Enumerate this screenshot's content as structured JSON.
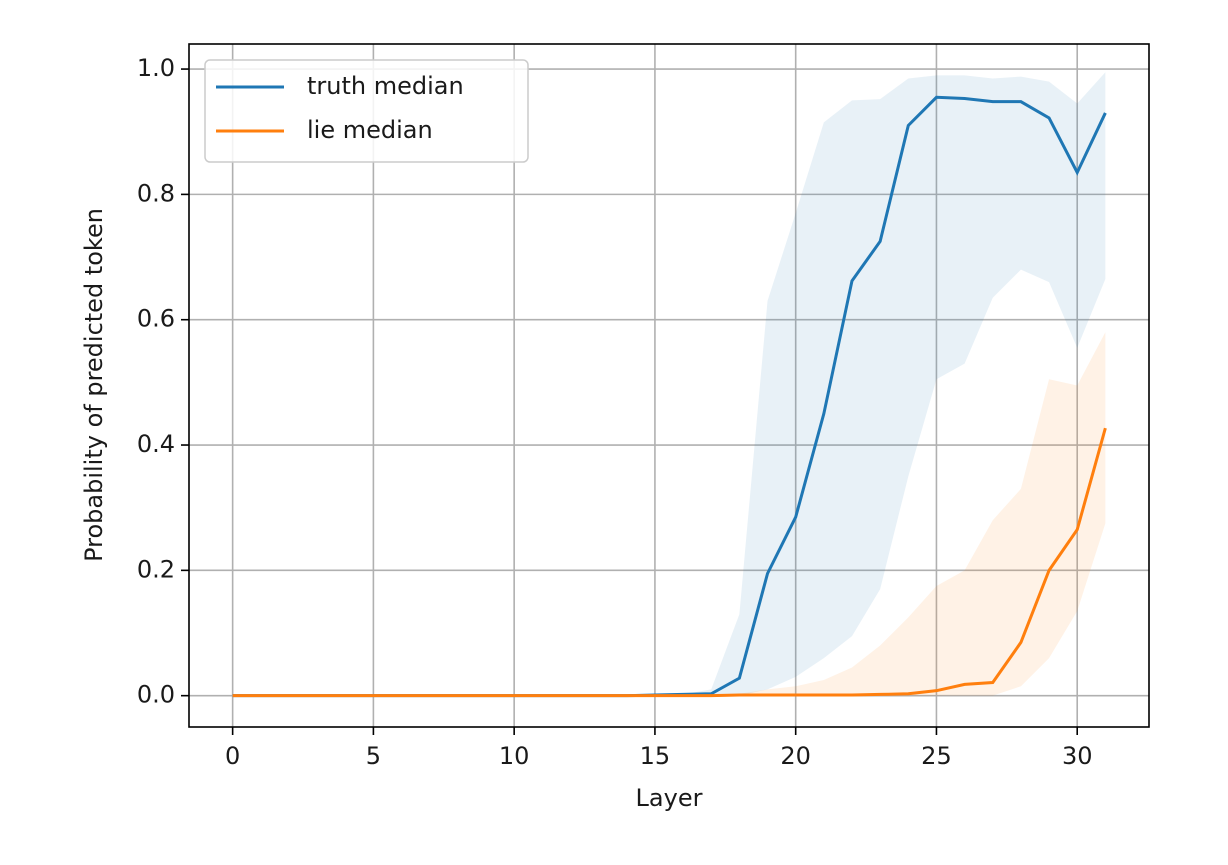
{
  "chart_data": {
    "type": "line",
    "xlabel": "Layer",
    "ylabel": "Probability of predicted token",
    "x": [
      0,
      1,
      2,
      3,
      4,
      5,
      6,
      7,
      8,
      9,
      10,
      11,
      12,
      13,
      14,
      15,
      16,
      17,
      18,
      19,
      20,
      21,
      22,
      23,
      24,
      25,
      26,
      27,
      28,
      29,
      30,
      31
    ],
    "series": [
      {
        "name": "truth median",
        "color": "#1f77b4",
        "band_color": "#1f77b4",
        "values": [
          0,
          0,
          0,
          0,
          0,
          0,
          0,
          0,
          0,
          0,
          0,
          0,
          0,
          0,
          0,
          0.001,
          0.002,
          0.003,
          0.028,
          0.195,
          0.285,
          0.45,
          0.662,
          0.725,
          0.91,
          0.955,
          0.953,
          0.948,
          0.948,
          0.922,
          0.835,
          0.93
        ],
        "upper": [
          0,
          0,
          0,
          0,
          0,
          0,
          0,
          0,
          0,
          0,
          0,
          0,
          0,
          0,
          0,
          0.001,
          0.002,
          0.01,
          0.13,
          0.63,
          0.77,
          0.915,
          0.95,
          0.952,
          0.985,
          0.99,
          0.99,
          0.985,
          0.988,
          0.98,
          0.945,
          0.995
        ],
        "lower": [
          0,
          0,
          0,
          0,
          0,
          0,
          0,
          0,
          0,
          0,
          0,
          0,
          0,
          0,
          0,
          0,
          0,
          0,
          0,
          0.01,
          0.03,
          0.06,
          0.095,
          0.17,
          0.35,
          0.505,
          0.53,
          0.635,
          0.68,
          0.66,
          0.555,
          0.665
        ]
      },
      {
        "name": "lie median",
        "color": "#ff7f0e",
        "band_color": "#ff7f0e",
        "values": [
          0,
          0,
          0,
          0,
          0,
          0,
          0,
          0,
          0,
          0,
          0,
          0,
          0,
          0,
          0,
          0,
          0,
          0,
          0.001,
          0.001,
          0.001,
          0.001,
          0.001,
          0.002,
          0.003,
          0.008,
          0.018,
          0.021,
          0.085,
          0.2,
          0.265,
          0.427
        ],
        "upper": [
          0,
          0,
          0,
          0,
          0,
          0,
          0,
          0,
          0,
          0,
          0,
          0,
          0,
          0,
          0,
          0,
          0,
          0,
          0.003,
          0.01,
          0.015,
          0.025,
          0.045,
          0.08,
          0.125,
          0.175,
          0.2,
          0.28,
          0.33,
          0.505,
          0.495,
          0.58
        ],
        "lower": [
          0,
          0,
          0,
          0,
          0,
          0,
          0,
          0,
          0,
          0,
          0,
          0,
          0,
          0,
          0,
          0,
          0,
          0,
          0,
          0,
          0,
          0,
          0,
          0,
          0,
          0,
          0,
          0,
          0.015,
          0.06,
          0.135,
          0.275
        ]
      }
    ],
    "xlim": [
      -1.55,
      32.55
    ],
    "ylim": [
      -0.05,
      1.04
    ],
    "xticks": [
      0,
      5,
      10,
      15,
      20,
      25,
      30
    ],
    "yticks": [
      {
        "value": 0,
        "label": "0.0"
      },
      0.2,
      0.4,
      0.6,
      0.8,
      {
        "value": 1,
        "label": "1.0"
      }
    ],
    "grid": true,
    "legend": "upper-left"
  }
}
